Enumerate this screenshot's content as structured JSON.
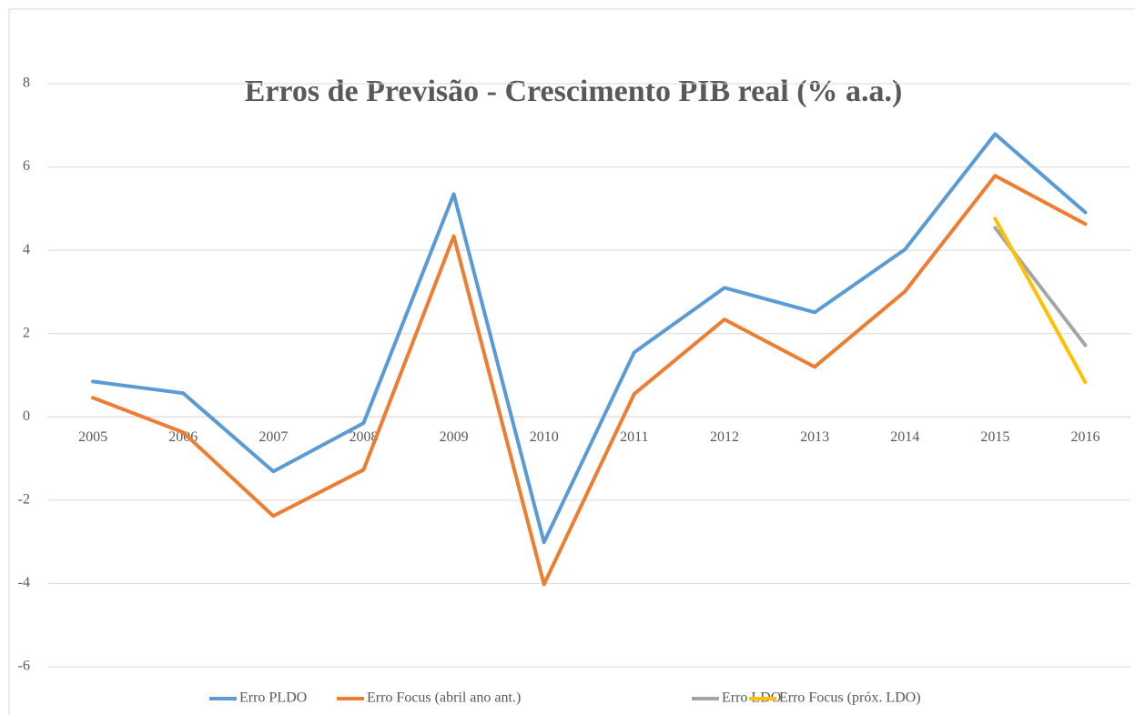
{
  "chart_data": {
    "type": "line",
    "title": "Erros de Previsão - Crescimento PIB real (% a.a.)",
    "categories": [
      "2005",
      "2006",
      "2007",
      "2008",
      "2009",
      "2010",
      "2011",
      "2012",
      "2013",
      "2014",
      "2015",
      "2016"
    ],
    "series": [
      {
        "name": "Erro PLDO",
        "color": "#5b9bd5",
        "values": [
          0.85,
          0.57,
          -1.31,
          -0.15,
          5.35,
          -3.01,
          1.55,
          3.1,
          2.51,
          4.02,
          6.79,
          4.91
        ]
      },
      {
        "name": "Erro Focus (abril ano ant.)",
        "color": "#ed7d31",
        "values": [
          0.46,
          -0.37,
          -2.38,
          -1.27,
          4.34,
          -4.02,
          0.55,
          2.34,
          1.2,
          3.01,
          5.79,
          4.63
        ]
      },
      {
        "name": "Erro LDO",
        "color": "#a5a5a5",
        "values": [
          null,
          null,
          null,
          null,
          null,
          null,
          null,
          null,
          null,
          null,
          4.54,
          1.72
        ]
      },
      {
        "name": "Erro Focus (próx. LDO)",
        "color": "#ffc000",
        "values": [
          null,
          null,
          null,
          null,
          null,
          null,
          null,
          null,
          null,
          null,
          4.76,
          0.83
        ]
      }
    ],
    "ylim": [
      -6,
      8
    ],
    "yticks": [
      -6,
      -4,
      -2,
      0,
      2,
      4,
      6,
      8
    ],
    "grid": true,
    "legend": "bottom"
  }
}
